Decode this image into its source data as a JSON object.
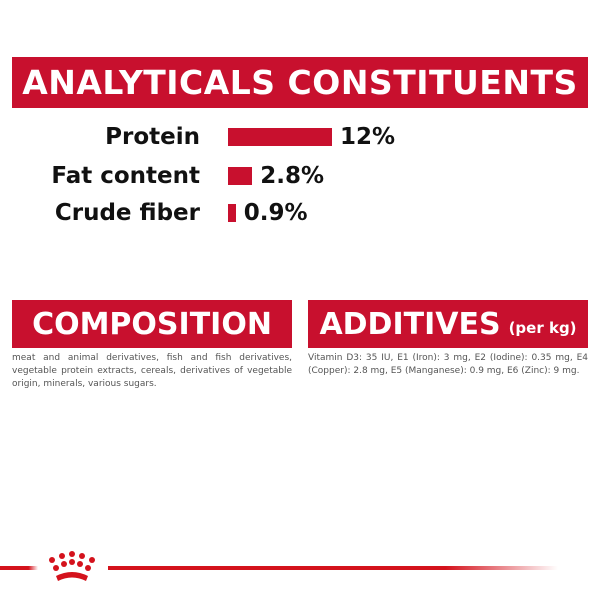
{
  "analyticals": {
    "title": "ANALYTICALS CONSTITUENTS",
    "items": [
      {
        "label": "Protein",
        "value": "12%",
        "percent": 12
      },
      {
        "label": "Fat content",
        "value": "2.8%",
        "percent": 2.8
      },
      {
        "label": "Crude fiber",
        "value": "0.9%",
        "percent": 0.9
      }
    ]
  },
  "composition": {
    "title": "COMPOSITION",
    "text": "meat and animal derivatives, fish and fish derivatives, vegetable protein extracts, cereals, derivatives of vegetable origin, minerals, various sugars."
  },
  "additives": {
    "title": "ADDITIVES",
    "subtitle": "(per kg)",
    "text": "Vitamin D3: 35 IU, E1 (Iron): 3 mg, E2 (Iodine): 0.35 mg, E4 (Copper): 2.8 mg, E5 (Manganese): 0.9 mg, E6 (Zinc): 9 mg."
  },
  "colors": {
    "brand_red": "#c8102e"
  },
  "logo": {
    "icon": "crown-icon"
  }
}
